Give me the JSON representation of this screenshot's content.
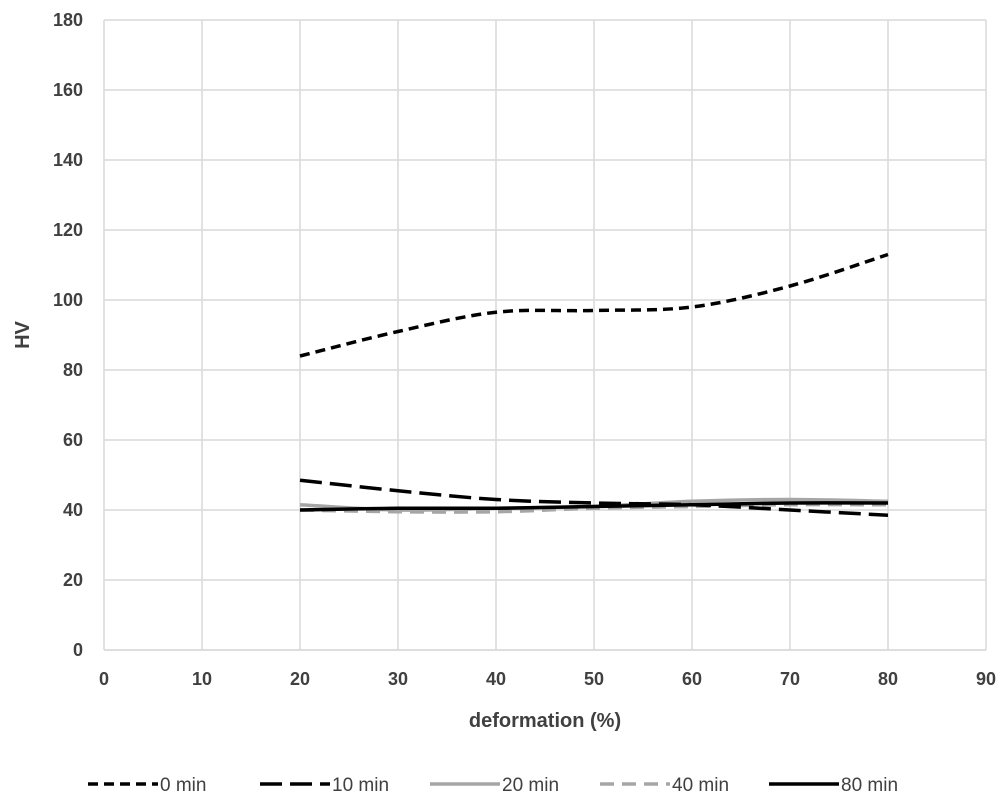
{
  "chart_data": {
    "type": "line",
    "title": "",
    "xlabel": "deformation (%)",
    "ylabel": "HV",
    "xlim": [
      0,
      90
    ],
    "ylim": [
      0,
      180
    ],
    "x_ticks": [
      0,
      10,
      20,
      30,
      40,
      50,
      60,
      70,
      80,
      90
    ],
    "y_ticks": [
      0,
      20,
      40,
      60,
      80,
      100,
      120,
      140,
      160,
      180
    ],
    "grid": true,
    "legend_position": "bottom",
    "x": [
      20,
      30,
      40,
      50,
      60,
      70,
      80
    ],
    "series": [
      {
        "name": "0 min",
        "values": [
          84,
          91,
          96.5,
          97,
          98,
          104,
          113
        ],
        "color": "#000000",
        "dash": "short-dash"
      },
      {
        "name": "10 min",
        "values": [
          48.5,
          45.5,
          43,
          42,
          41.5,
          40,
          38.5
        ],
        "color": "#000000",
        "dash": "long-dash"
      },
      {
        "name": "20 min",
        "values": [
          41.5,
          40,
          40.5,
          41,
          42.5,
          43,
          42.5
        ],
        "color": "#a6a6a6",
        "dash": "solid"
      },
      {
        "name": "40 min",
        "values": [
          40,
          39.5,
          39.5,
          40.5,
          41,
          41.5,
          41.5
        ],
        "color": "#a6a6a6",
        "dash": "dashed"
      },
      {
        "name": "80 min",
        "values": [
          40,
          40.5,
          40.5,
          41,
          41.5,
          42,
          42
        ],
        "color": "#000000",
        "dash": "solid"
      }
    ]
  }
}
